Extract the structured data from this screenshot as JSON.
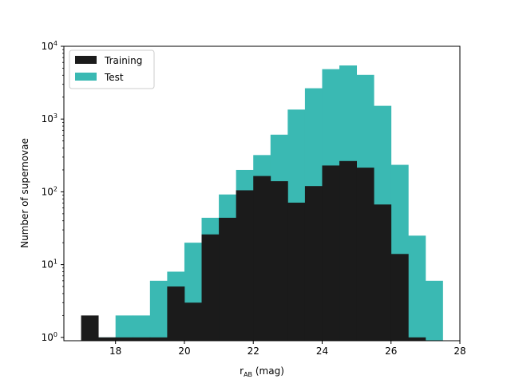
{
  "chart_data": {
    "type": "bar",
    "subtype": "histogram",
    "title": "",
    "xlabel_main": "r",
    "xlabel_sub": "AB",
    "xlabel_unit": " (mag)",
    "ylabel": "Number of supernovae",
    "xlim": [
      16.5,
      28.0
    ],
    "ylim": [
      0.9,
      10000
    ],
    "yscale": "log",
    "grid": false,
    "legend_position": "top-left",
    "bin_edges": [
      17.0,
      17.5,
      18.0,
      18.5,
      19.0,
      19.5,
      20.0,
      20.5,
      21.0,
      21.5,
      22.0,
      22.5,
      23.0,
      23.5,
      24.0,
      24.5,
      25.0,
      25.5,
      26.0,
      26.5,
      27.0,
      27.5
    ],
    "x_ticks": [
      {
        "value": 18,
        "label": "18"
      },
      {
        "value": 20,
        "label": "20"
      },
      {
        "value": 22,
        "label": "22"
      },
      {
        "value": 24,
        "label": "24"
      },
      {
        "value": 26,
        "label": "26"
      },
      {
        "value": 28,
        "label": "28"
      }
    ],
    "y_ticks": [
      {
        "value": 1,
        "base": "10",
        "exp": "0"
      },
      {
        "value": 10,
        "base": "10",
        "exp": "1"
      },
      {
        "value": 100,
        "base": "10",
        "exp": "2"
      },
      {
        "value": 1000,
        "base": "10",
        "exp": "3"
      },
      {
        "value": 10000,
        "base": "10",
        "exp": "4"
      }
    ],
    "series": [
      {
        "name": "Test",
        "color": "#3ab9b3",
        "values": [
          0,
          1,
          2,
          2,
          6,
          8,
          20,
          44,
          92,
          200,
          320,
          610,
          1350,
          2650,
          4850,
          5450,
          4050,
          1520,
          235,
          25,
          6,
          1
        ]
      },
      {
        "name": "Training",
        "color": "#1b1b1b",
        "values": [
          2,
          1,
          1,
          1,
          1,
          5,
          3,
          26,
          44,
          105,
          165,
          140,
          71,
          120,
          230,
          265,
          215,
          67,
          14,
          1,
          0,
          0
        ]
      }
    ]
  }
}
